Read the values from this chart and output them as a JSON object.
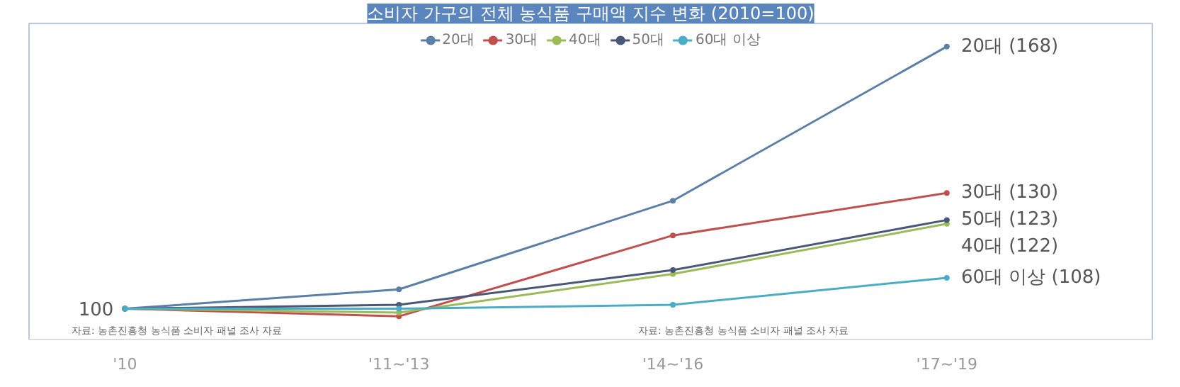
{
  "chart_data": {
    "type": "line",
    "title": "소비자 가구의 전체 농식품 구매액 지수 변화 (2010=100)",
    "categories": [
      "'10",
      "'11~'13",
      "'14~'16",
      "'17~'19"
    ],
    "series": [
      {
        "name": "20대",
        "color": "#5b7fa6",
        "values": [
          100,
          105,
          128,
          168
        ],
        "value_labels": [
          "100",
          null,
          null,
          "20대 (168)"
        ]
      },
      {
        "name": "30대",
        "color": "#c0504d",
        "values": [
          100,
          98,
          119,
          130
        ],
        "value_labels": [
          null,
          null,
          null,
          "30대 (130)"
        ]
      },
      {
        "name": "40대",
        "color": "#9bbb59",
        "values": [
          100,
          99,
          109,
          122
        ],
        "value_labels": [
          null,
          null,
          null,
          "40대 (122)"
        ]
      },
      {
        "name": "50대",
        "color": "#4a5878",
        "values": [
          100,
          101,
          110,
          123
        ],
        "value_labels": [
          null,
          null,
          null,
          "50대 (123)"
        ]
      },
      {
        "name": "60대 이상",
        "color": "#4bacc6",
        "values": [
          100,
          100,
          101,
          108
        ],
        "value_labels": [
          null,
          null,
          null,
          "60대 이상 (108)"
        ]
      }
    ],
    "ylim": [
      92,
      174
    ],
    "legend": "top",
    "grid": false,
    "marker": "circle",
    "line_style": "solid",
    "annotations": [
      "자료: 농촌진흥청 농식품 소비자 패널 조사 자료",
      "자료: 농촌진흥청 농식품 소비자 패널 조사 자료"
    ]
  }
}
